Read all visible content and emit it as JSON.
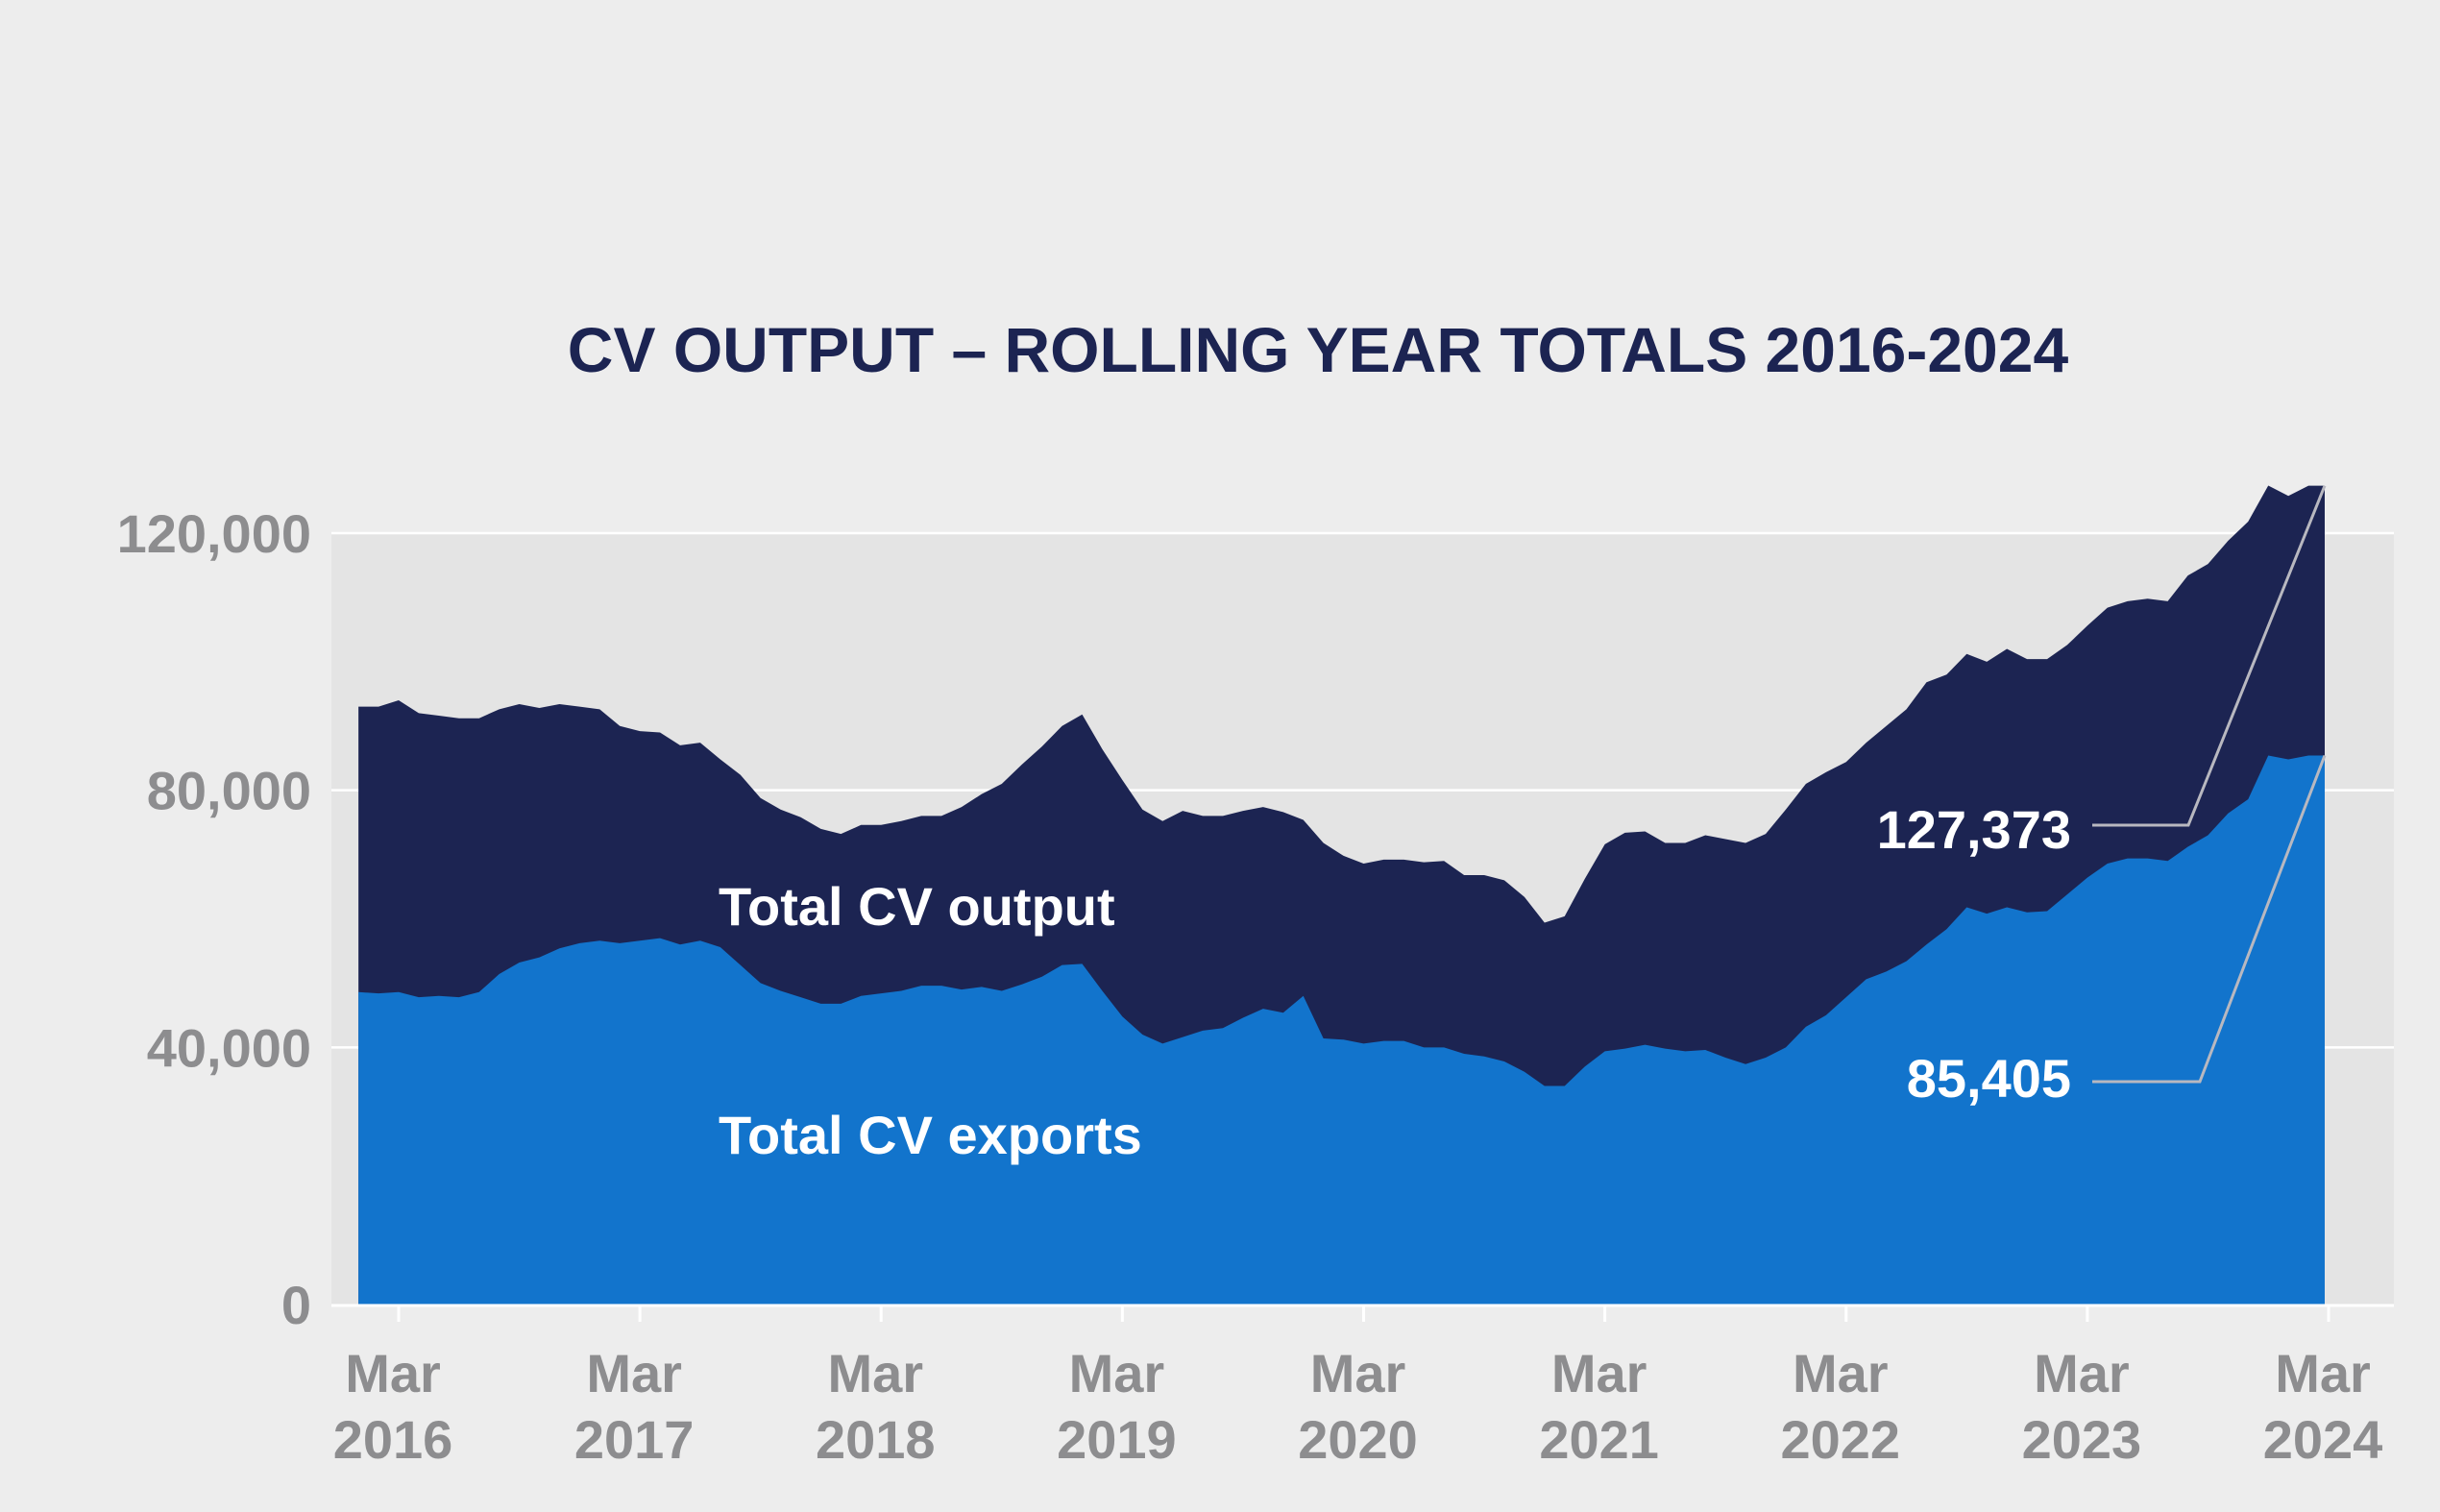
{
  "chart_data": {
    "type": "area",
    "title": "CV OUTPUT – ROLLING YEAR TOTALS 2016-2024",
    "xlabel": "",
    "ylabel": "",
    "ylim": [
      0,
      120000
    ],
    "yticks": [
      {
        "value": 0,
        "label": "0"
      },
      {
        "value": 40000,
        "label": "40,000"
      },
      {
        "value": 80000,
        "label": "80,000"
      },
      {
        "value": 120000,
        "label": "120,000"
      }
    ],
    "xticks": [
      {
        "date": "2016-03",
        "line1": "Mar",
        "line2": "2016"
      },
      {
        "date": "2017-03",
        "line1": "Mar",
        "line2": "2017"
      },
      {
        "date": "2018-03",
        "line1": "Mar",
        "line2": "2018"
      },
      {
        "date": "2019-03",
        "line1": "Mar",
        "line2": "2019"
      },
      {
        "date": "2020-03",
        "line1": "Mar",
        "line2": "2020"
      },
      {
        "date": "2021-03",
        "line1": "Mar",
        "line2": "2021"
      },
      {
        "date": "2022-03",
        "line1": "Mar",
        "line2": "2022"
      },
      {
        "date": "2023-03",
        "line1": "Mar",
        "line2": "2023"
      },
      {
        "date": "2024-03",
        "line1": "Mar",
        "line2": "2024"
      }
    ],
    "x": [
      "2016-01",
      "2016-02",
      "2016-03",
      "2016-04",
      "2016-05",
      "2016-06",
      "2016-07",
      "2016-08",
      "2016-09",
      "2016-10",
      "2016-11",
      "2016-12",
      "2017-01",
      "2017-02",
      "2017-03",
      "2017-04",
      "2017-05",
      "2017-06",
      "2017-07",
      "2017-08",
      "2017-09",
      "2017-10",
      "2017-11",
      "2017-12",
      "2018-01",
      "2018-02",
      "2018-03",
      "2018-04",
      "2018-05",
      "2018-06",
      "2018-07",
      "2018-08",
      "2018-09",
      "2018-10",
      "2018-11",
      "2018-12",
      "2019-01",
      "2019-02",
      "2019-03",
      "2019-04",
      "2019-05",
      "2019-06",
      "2019-07",
      "2019-08",
      "2019-09",
      "2019-10",
      "2019-11",
      "2019-12",
      "2020-01",
      "2020-02",
      "2020-03",
      "2020-04",
      "2020-05",
      "2020-06",
      "2020-07",
      "2020-08",
      "2020-09",
      "2020-10",
      "2020-11",
      "2020-12",
      "2021-01",
      "2021-02",
      "2021-03",
      "2021-04",
      "2021-05",
      "2021-06",
      "2021-07",
      "2021-08",
      "2021-09",
      "2021-10",
      "2021-11",
      "2021-12",
      "2022-01",
      "2022-02",
      "2022-03",
      "2022-04",
      "2022-05",
      "2022-06",
      "2022-07",
      "2022-08",
      "2022-09",
      "2022-10",
      "2022-11",
      "2022-12",
      "2023-01",
      "2023-02",
      "2023-03",
      "2023-04",
      "2023-05",
      "2023-06",
      "2023-07",
      "2023-08",
      "2023-09",
      "2023-10",
      "2023-11",
      "2023-12",
      "2024-01",
      "2024-02",
      "2024-03"
    ],
    "series": [
      {
        "name": "Total CV output",
        "color": "#1c2452",
        "values": [
          93000,
          93000,
          94000,
          92000,
          91600,
          91200,
          91200,
          92600,
          93400,
          92800,
          93400,
          93000,
          92600,
          90000,
          89200,
          89000,
          87000,
          87400,
          84800,
          82400,
          78800,
          77000,
          75800,
          74000,
          73200,
          74600,
          74600,
          75200,
          76000,
          76000,
          77400,
          79400,
          81000,
          84000,
          86800,
          90000,
          91800,
          86400,
          81600,
          77000,
          75200,
          76800,
          76000,
          76000,
          76800,
          77400,
          76600,
          75400,
          71800,
          69800,
          68600,
          69200,
          69200,
          68800,
          69000,
          66800,
          66800,
          66000,
          63400,
          59400,
          60400,
          66200,
          71600,
          73400,
          73600,
          71800,
          71800,
          73000,
          72400,
          71800,
          73200,
          77000,
          81000,
          82800,
          84400,
          87400,
          90000,
          92600,
          96800,
          98000,
          101200,
          100000,
          102000,
          100400,
          100400,
          102600,
          105600,
          108400,
          109400,
          109800,
          109400,
          113400,
          115200,
          118800,
          121800,
          127400,
          125800,
          127373,
          127373
        ],
        "label": "Total CV output",
        "end_label": "127,373"
      },
      {
        "name": "Total CV exports",
        "color": "#1274cc",
        "values": [
          48600,
          48400,
          48600,
          47800,
          48000,
          47800,
          48600,
          51400,
          53200,
          54000,
          55400,
          56200,
          56600,
          56200,
          56600,
          57000,
          56000,
          56600,
          55600,
          52800,
          50000,
          48800,
          47800,
          46800,
          46800,
          48000,
          48400,
          48800,
          49600,
          49600,
          49000,
          49400,
          48800,
          49800,
          51000,
          52800,
          53000,
          48800,
          44800,
          42000,
          40600,
          41600,
          42600,
          43000,
          44600,
          46000,
          45400,
          48000,
          41400,
          41200,
          40600,
          41000,
          41000,
          40000,
          40000,
          39000,
          38600,
          37800,
          36200,
          34000,
          34000,
          37000,
          39400,
          39800,
          40400,
          39800,
          39400,
          39600,
          38400,
          37400,
          38400,
          40000,
          43200,
          45000,
          47800,
          50600,
          51800,
          53400,
          56000,
          58400,
          61800,
          60800,
          61800,
          61000,
          61200,
          63800,
          66400,
          68600,
          69400,
          69400,
          69000,
          71200,
          73000,
          76400,
          78600,
          85405,
          84800,
          85405,
          85405
        ],
        "label": "Total CV exports",
        "end_label": "85,405"
      }
    ],
    "grid": true,
    "legend": "none"
  }
}
